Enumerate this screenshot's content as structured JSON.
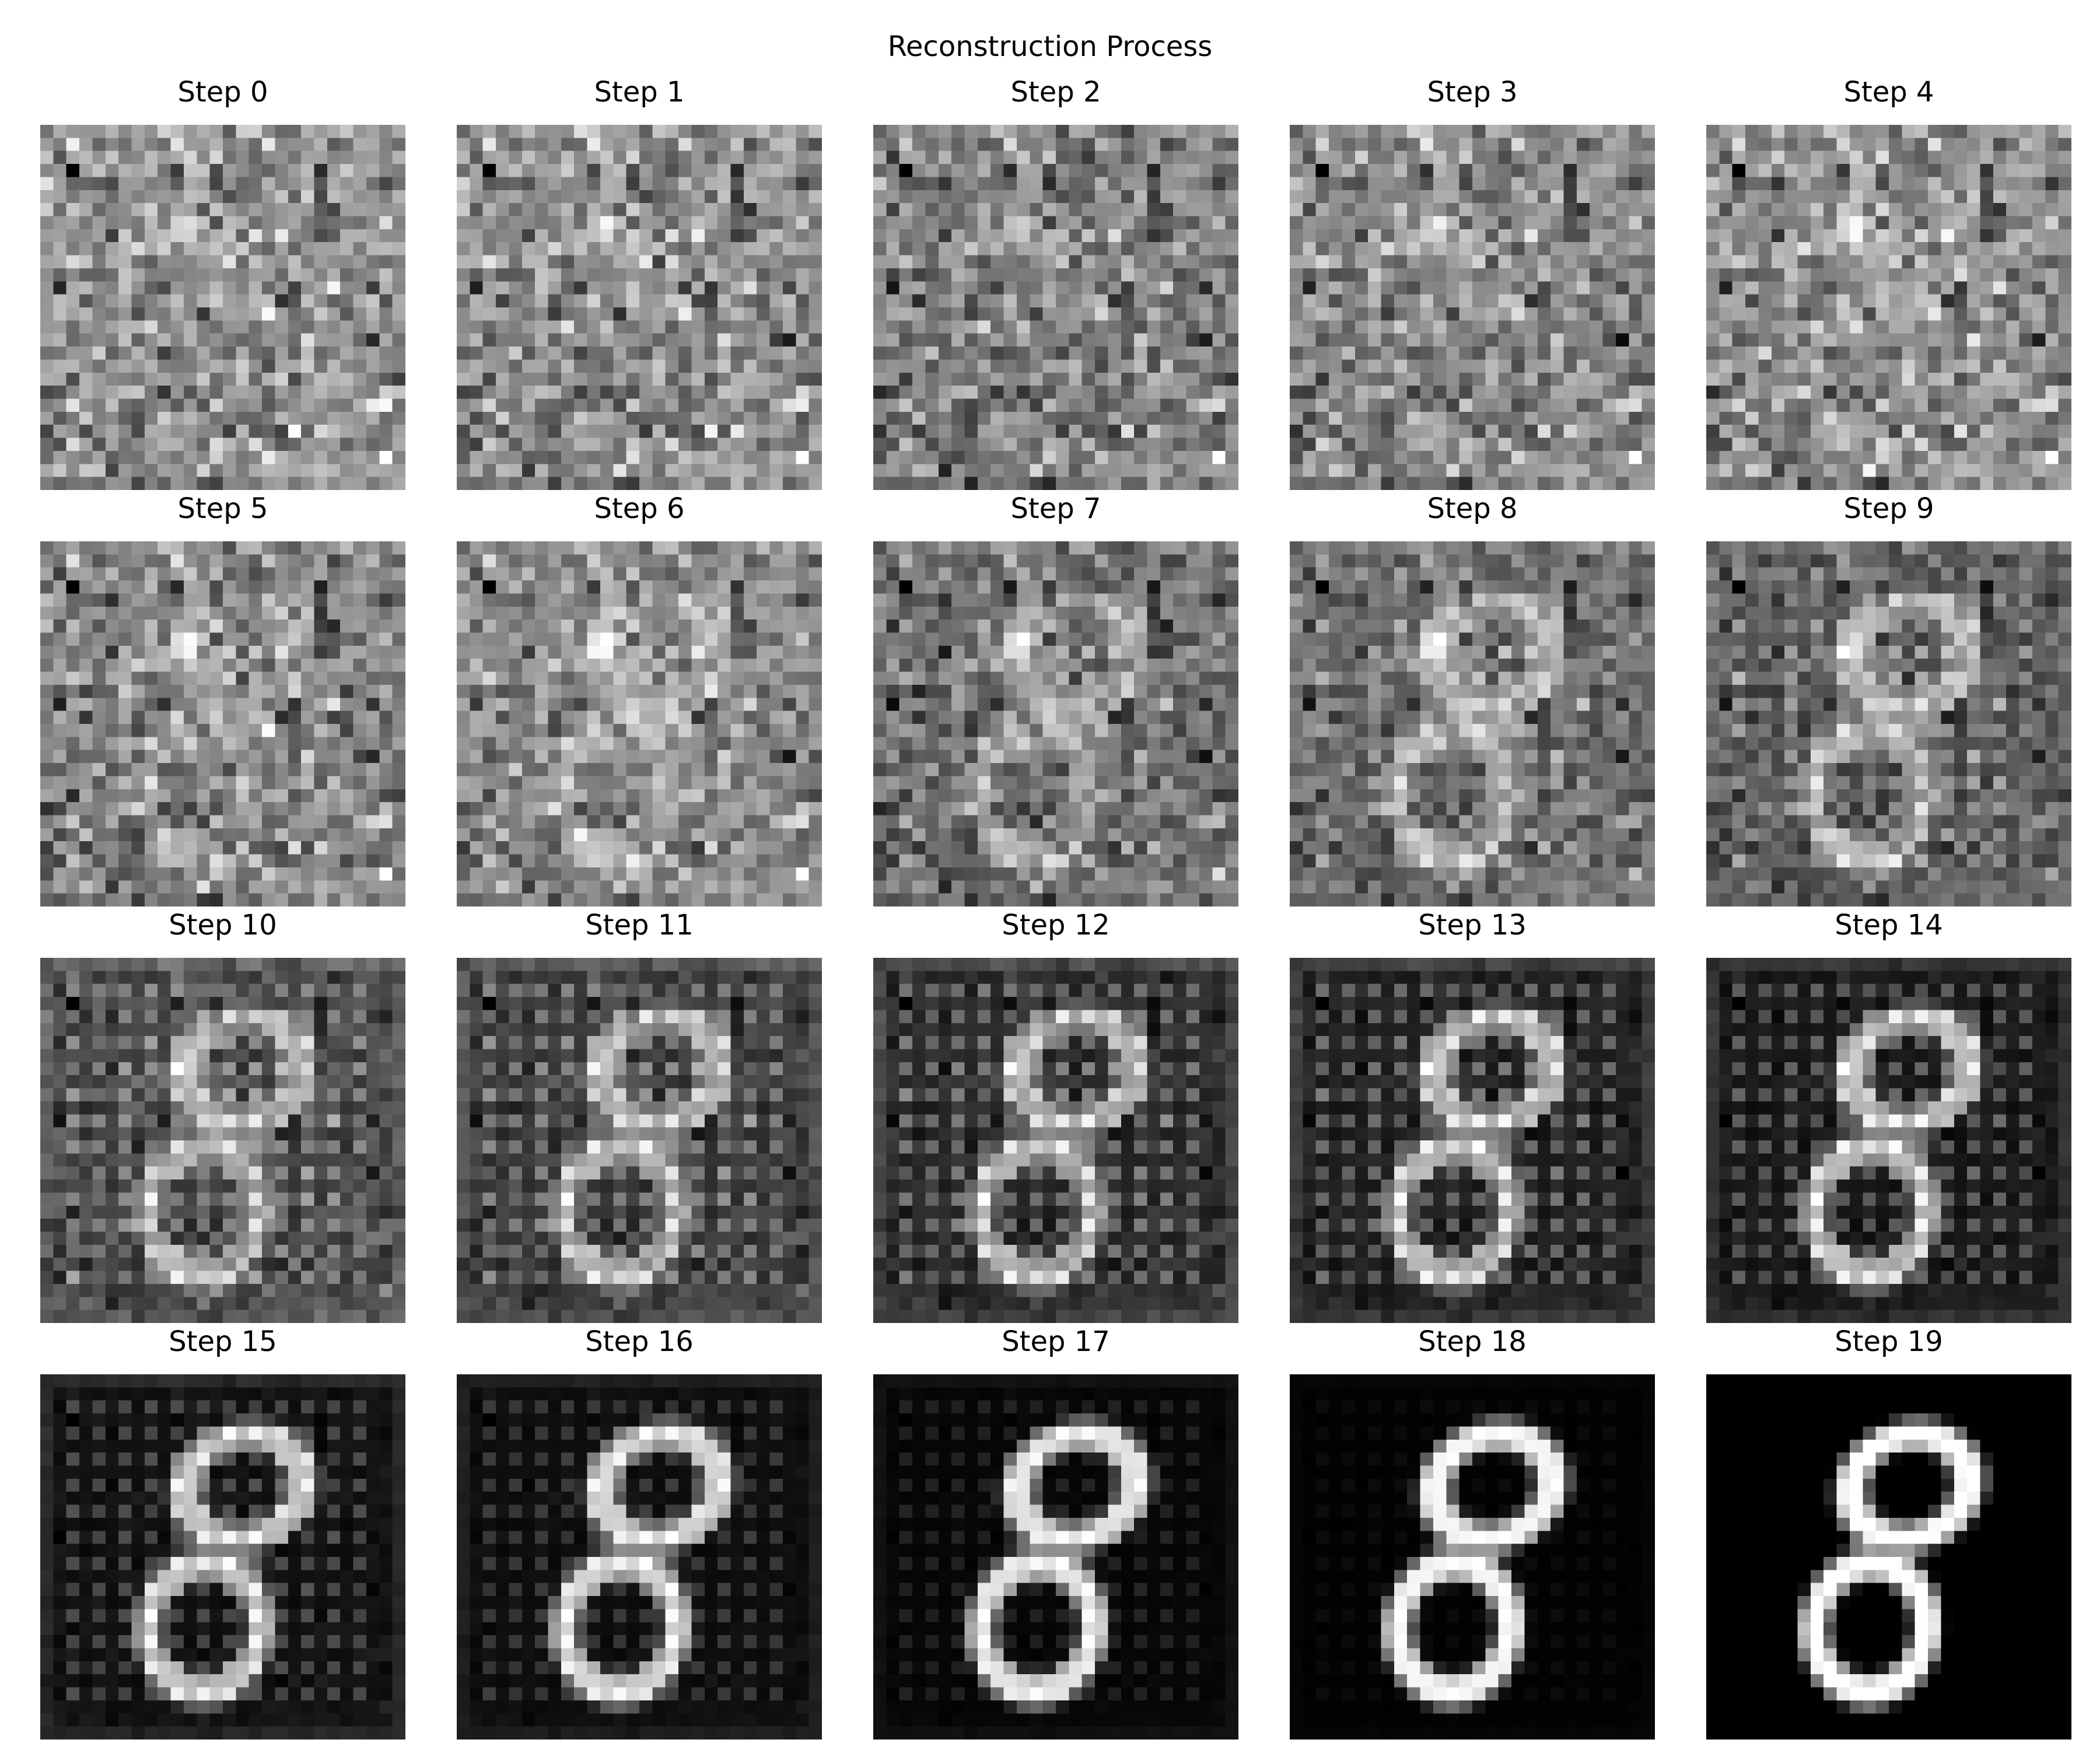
{
  "title": "Reconstruction Process",
  "colormap": "gray",
  "image_resolution": 28,
  "digit": "8",
  "panels": [
    {
      "label": "Step 0",
      "step": 0
    },
    {
      "label": "Step 1",
      "step": 1
    },
    {
      "label": "Step 2",
      "step": 2
    },
    {
      "label": "Step 3",
      "step": 3
    },
    {
      "label": "Step 4",
      "step": 4
    },
    {
      "label": "Step 5",
      "step": 5
    },
    {
      "label": "Step 6",
      "step": 6
    },
    {
      "label": "Step 7",
      "step": 7
    },
    {
      "label": "Step 8",
      "step": 8
    },
    {
      "label": "Step 9",
      "step": 9
    },
    {
      "label": "Step 10",
      "step": 10
    },
    {
      "label": "Step 11",
      "step": 11
    },
    {
      "label": "Step 12",
      "step": 12
    },
    {
      "label": "Step 13",
      "step": 13
    },
    {
      "label": "Step 14",
      "step": 14
    },
    {
      "label": "Step 15",
      "step": 15
    },
    {
      "label": "Step 16",
      "step": 16
    },
    {
      "label": "Step 17",
      "step": 17
    },
    {
      "label": "Step 18",
      "step": 18
    },
    {
      "label": "Step 19",
      "step": 19
    }
  ]
}
